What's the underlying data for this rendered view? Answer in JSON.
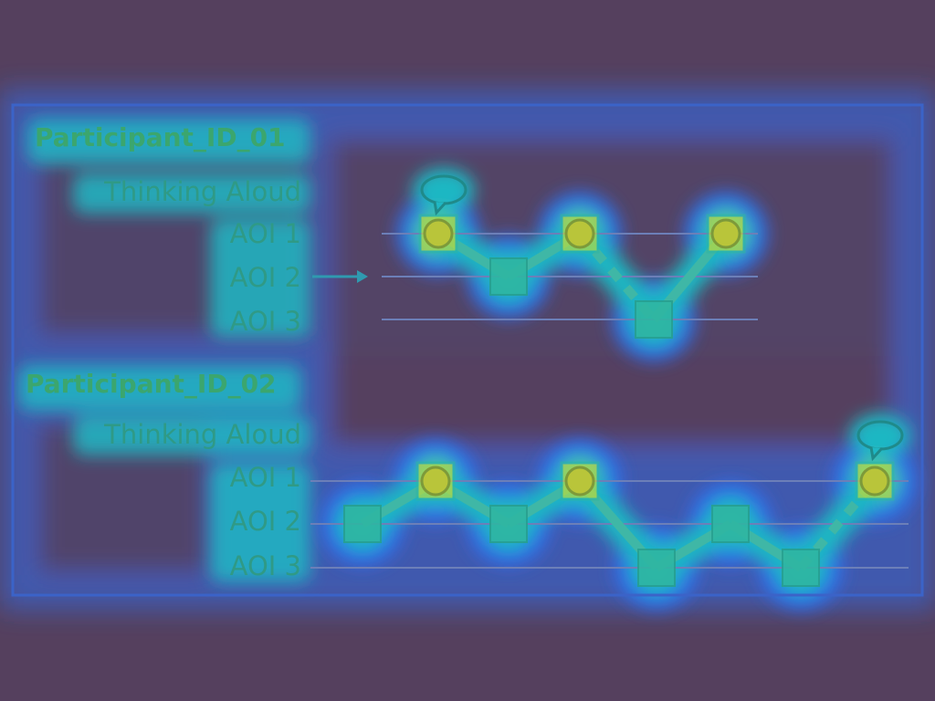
{
  "colors": {
    "background": "#55405e",
    "heat_hot": "#dfe81e",
    "heat_warm": "#6fd24a",
    "heat_mid": "#1fb7c3",
    "heat_cool": "#2f6ff0",
    "frame": "#3b63c8",
    "track": "#6c7fb8",
    "mark": "#2fb6a2",
    "path": "#3fb7a6"
  },
  "participants": [
    {
      "id": "Participant_ID_01",
      "rows": [
        "Thinking Aloud",
        "AOI 1",
        "AOI 2",
        "AOI 3"
      ],
      "arrow_row": "AOI 2",
      "gaze_sequence": [
        {
          "aoi": "AOI 1",
          "shape": "circle",
          "think_aloud": true
        },
        {
          "aoi": "AOI 2",
          "shape": "square"
        },
        {
          "aoi": "AOI 1",
          "shape": "circle"
        },
        {
          "aoi": "AOI 3",
          "shape": "square",
          "link": "dashed"
        },
        {
          "aoi": "AOI 1",
          "shape": "circle"
        }
      ]
    },
    {
      "id": "Participant_ID_02",
      "rows": [
        "Thinking Aloud",
        "AOI 1",
        "AOI 2",
        "AOI 3"
      ],
      "gaze_sequence": [
        {
          "aoi": "AOI 2",
          "shape": "square"
        },
        {
          "aoi": "AOI 1",
          "shape": "circle"
        },
        {
          "aoi": "AOI 2",
          "shape": "square"
        },
        {
          "aoi": "AOI 1",
          "shape": "circle"
        },
        {
          "aoi": "AOI 3",
          "shape": "square"
        },
        {
          "aoi": "AOI 2",
          "shape": "square"
        },
        {
          "aoi": "AOI 3",
          "shape": "square"
        },
        {
          "aoi": "AOI 1",
          "shape": "circle",
          "link": "dashed",
          "think_aloud": true
        }
      ]
    }
  ]
}
